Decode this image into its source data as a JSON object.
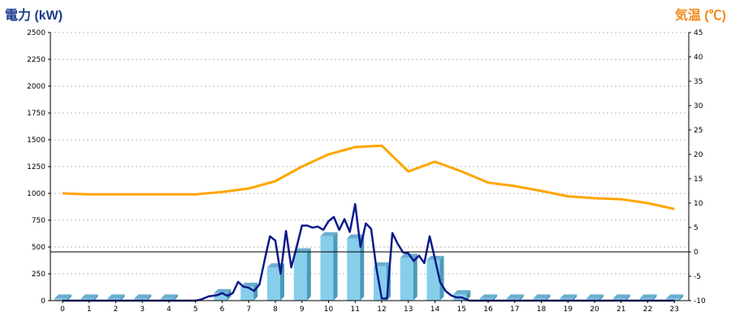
{
  "chart_data": {
    "type": "bar+line",
    "left_axis": {
      "label": "電力 (kW)",
      "range": [
        0,
        2500
      ],
      "ticks": [
        0,
        250,
        500,
        750,
        1000,
        1250,
        1500,
        1750,
        2000,
        2250,
        2500
      ],
      "color": "#1a3c8c"
    },
    "right_axis": {
      "label": "気温 (℃)",
      "range": [
        -10,
        45
      ],
      "ticks": [
        -10,
        -5,
        0,
        5,
        10,
        15,
        20,
        25,
        30,
        35,
        40,
        45
      ],
      "color": "#f08a1c"
    },
    "x_axis": {
      "categories": [
        "0",
        "1",
        "2",
        "3",
        "4",
        "5",
        "6",
        "7",
        "8",
        "9",
        "10",
        "11",
        "12",
        "13",
        "14",
        "15",
        "16",
        "17",
        "18",
        "19",
        "20",
        "21",
        "22",
        "23"
      ]
    },
    "grid": true,
    "series": [
      {
        "type": "bar",
        "axis": "left",
        "color": "#87ceeb",
        "values": [
          20,
          20,
          20,
          20,
          20,
          0,
          70,
          130,
          310,
          450,
          600,
          580,
          320,
          400,
          380,
          60,
          20,
          20,
          20,
          20,
          20,
          20,
          20,
          20
        ]
      },
      {
        "type": "line",
        "axis": "left",
        "color": "#0d1a8c",
        "x": [
          0,
          0.5,
          1,
          1.5,
          2,
          2.5,
          3,
          3.5,
          4,
          4.5,
          5,
          5.2,
          5.5,
          5.8,
          6,
          6.2,
          6.4,
          6.6,
          6.8,
          7,
          7.2,
          7.4,
          7.6,
          7.8,
          8,
          8.2,
          8.4,
          8.6,
          8.8,
          9,
          9.2,
          9.4,
          9.6,
          9.8,
          10,
          10.2,
          10.4,
          10.6,
          10.8,
          11,
          11.2,
          11.4,
          11.6,
          11.8,
          12,
          12.2,
          12.4,
          12.6,
          12.8,
          13,
          13.2,
          13.4,
          13.6,
          13.8,
          14,
          14.2,
          14.4,
          14.6,
          14.8,
          15,
          15.3,
          15.6,
          16,
          17,
          18,
          19,
          20,
          21,
          22,
          23
        ],
        "values": [
          0,
          0,
          0,
          0,
          0,
          0,
          0,
          0,
          0,
          0,
          0,
          10,
          40,
          50,
          70,
          45,
          70,
          175,
          130,
          120,
          90,
          150,
          380,
          600,
          560,
          250,
          650,
          310,
          500,
          700,
          700,
          680,
          690,
          660,
          740,
          780,
          660,
          760,
          640,
          900,
          500,
          720,
          670,
          300,
          20,
          20,
          630,
          530,
          450,
          440,
          370,
          420,
          350,
          600,
          390,
          170,
          90,
          50,
          30,
          30,
          0,
          0,
          0,
          0,
          0,
          0,
          0,
          0,
          0,
          0
        ]
      },
      {
        "type": "line",
        "axis": "right",
        "color": "#ffa500",
        "values": [
          12,
          11.8,
          11.8,
          11.8,
          11.8,
          11.8,
          12.3,
          13,
          14.5,
          17.5,
          20,
          21.5,
          21.8,
          16.5,
          18.5,
          16.5,
          14.2,
          13.5,
          12.5,
          11.4,
          11,
          10.8,
          10,
          8.8
        ]
      }
    ]
  }
}
